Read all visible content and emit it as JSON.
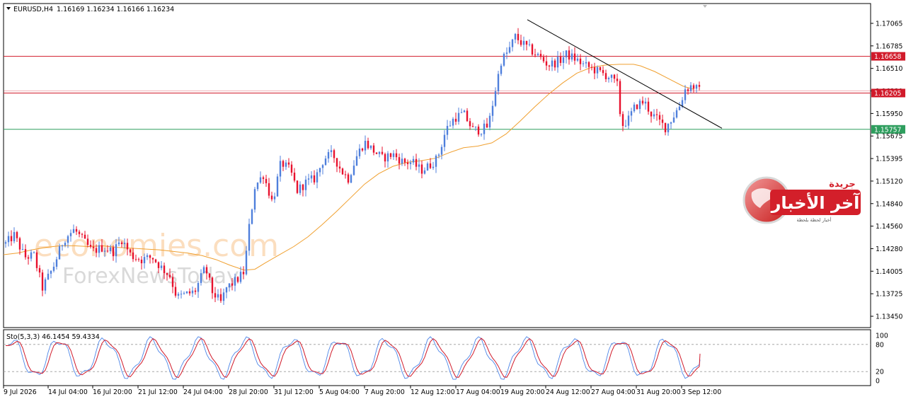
{
  "header": {
    "symbol": "EURUSD,H4",
    "ohlc": "1.16169 1.16234 1.16166 1.16234"
  },
  "stoch_header": "Sto(5,3,3) 46.1454 59.4334",
  "watermarks": {
    "economies": "economies.com",
    "forex_news": "ForexNewsToday",
    "logo_top": "جريدة",
    "logo_main": "آخر الأخبار",
    "logo_sub": "أخبار لحظة بلحظة"
  },
  "colors": {
    "bull": "#4f7fdc",
    "bear": "#e8112d",
    "ma": "#f0a030",
    "resistance": "#d11a2a",
    "support": "#2e9e5e",
    "stoch_main": "#4d86e8",
    "stoch_signal": "#d11a2a"
  },
  "chart_data": [
    {
      "type": "candlestick",
      "instrument": "EURUSD",
      "timeframe": "H4",
      "ylim": [
        1.1345,
        1.172
      ],
      "y_ticks": [
        "1.17065",
        "1.16785",
        "1.16510",
        "1.16230",
        "1.15950",
        "1.15675",
        "1.15395",
        "1.15120",
        "1.14840",
        "1.14560",
        "1.14280",
        "1.14005",
        "1.13725",
        "1.13450"
      ],
      "x_ticks": [
        "9 Jul 2026",
        "14 Jul 04:00",
        "16 Jul 20:00",
        "21 Jul 12:00",
        "24 Jul 04:00",
        "28 Jul 20:00",
        "31 Jul 12:00",
        "5 Aug 04:00",
        "7 Aug 20:00",
        "12 Aug 12:00",
        "17 Aug 04:00",
        "19 Aug 20:00",
        "24 Aug 12:00",
        "27 Aug 04:00",
        "31 Aug 20:00",
        "3 Sep 12:00"
      ],
      "levels": [
        {
          "value": 1.16658,
          "label": "1.16658",
          "color": "resistance"
        },
        {
          "value": 1.16205,
          "label": "1.16205",
          "color": "resistance"
        },
        {
          "value": 1.15757,
          "label": "1.15757",
          "color": "support"
        }
      ],
      "moving_average": [
        [
          0,
          1.1421
        ],
        [
          20,
          1.1423
        ],
        [
          40,
          1.1427
        ],
        [
          60,
          1.143
        ],
        [
          80,
          1.1432
        ],
        [
          100,
          1.1432
        ],
        [
          120,
          1.1431
        ],
        [
          140,
          1.1432
        ],
        [
          160,
          1.143
        ],
        [
          180,
          1.1429
        ],
        [
          200,
          1.1428
        ],
        [
          220,
          1.1427
        ],
        [
          240,
          1.1425
        ],
        [
          260,
          1.1423
        ],
        [
          280,
          1.142
        ],
        [
          300,
          1.1415
        ],
        [
          320,
          1.1408
        ],
        [
          340,
          1.1402
        ],
        [
          355,
          1.1403
        ],
        [
          370,
          1.1411
        ],
        [
          390,
          1.1421
        ],
        [
          410,
          1.1431
        ],
        [
          430,
          1.1443
        ],
        [
          450,
          1.1458
        ],
        [
          470,
          1.1474
        ],
        [
          490,
          1.1491
        ],
        [
          510,
          1.1508
        ],
        [
          530,
          1.1521
        ],
        [
          550,
          1.153
        ],
        [
          570,
          1.1535
        ],
        [
          590,
          1.1537
        ],
        [
          610,
          1.154
        ],
        [
          630,
          1.1547
        ],
        [
          650,
          1.1553
        ],
        [
          670,
          1.1555
        ],
        [
          690,
          1.1559
        ],
        [
          710,
          1.157
        ],
        [
          730,
          1.1586
        ],
        [
          750,
          1.1603
        ],
        [
          770,
          1.1619
        ],
        [
          790,
          1.1633
        ],
        [
          810,
          1.1645
        ],
        [
          830,
          1.1652
        ],
        [
          850,
          1.1655
        ],
        [
          870,
          1.1656
        ],
        [
          890,
          1.1656
        ],
        [
          900,
          1.1654
        ],
        [
          920,
          1.1647
        ],
        [
          940,
          1.1638
        ],
        [
          960,
          1.1629
        ],
        [
          975,
          1.1625
        ]
      ],
      "trendline": [
        [
          745,
          1.1711
        ],
        [
          1020,
          1.1577
        ]
      ],
      "ohlc_path": [
        [
          5,
          1.1432
        ],
        [
          20,
          1.1445
        ],
        [
          35,
          1.1418
        ],
        [
          48,
          1.142
        ],
        [
          60,
          1.138
        ],
        [
          75,
          1.1405
        ],
        [
          90,
          1.144
        ],
        [
          105,
          1.1452
        ],
        [
          118,
          1.1438
        ],
        [
          130,
          1.1425
        ],
        [
          145,
          1.143
        ],
        [
          160,
          1.1425
        ],
        [
          172,
          1.144
        ],
        [
          185,
          1.142
        ],
        [
          200,
          1.1415
        ],
        [
          215,
          1.1418
        ],
        [
          228,
          1.1405
        ],
        [
          240,
          1.1395
        ],
        [
          250,
          1.1368
        ],
        [
          262,
          1.1372
        ],
        [
          275,
          1.1375
        ],
        [
          290,
          1.1405
        ],
        [
          300,
          1.1375
        ],
        [
          312,
          1.1362
        ],
        [
          320,
          1.138
        ],
        [
          335,
          1.139
        ],
        [
          345,
          1.14
        ],
        [
          352,
          1.1455
        ],
        [
          360,
          1.1505
        ],
        [
          372,
          1.152
        ],
        [
          385,
          1.1485
        ],
        [
          397,
          1.1535
        ],
        [
          410,
          1.1525
        ],
        [
          420,
          1.15
        ],
        [
          432,
          1.151
        ],
        [
          445,
          1.1515
        ],
        [
          458,
          1.154
        ],
        [
          470,
          1.1545
        ],
        [
          482,
          1.1525
        ],
        [
          492,
          1.1515
        ],
        [
          505,
          1.1545
        ],
        [
          515,
          1.156
        ],
        [
          527,
          1.155
        ],
        [
          540,
          1.154
        ],
        [
          555,
          1.1545
        ],
        [
          570,
          1.1535
        ],
        [
          582,
          1.1535
        ],
        [
          595,
          1.1525
        ],
        [
          605,
          1.153
        ],
        [
          618,
          1.154
        ],
        [
          630,
          1.1575
        ],
        [
          642,
          1.159
        ],
        [
          655,
          1.1595
        ],
        [
          668,
          1.1575
        ],
        [
          680,
          1.1575
        ],
        [
          690,
          1.158
        ],
        [
          700,
          1.1625
        ],
        [
          708,
          1.166
        ],
        [
          718,
          1.1672
        ],
        [
          728,
          1.169
        ],
        [
          740,
          1.168
        ],
        [
          752,
          1.1672
        ],
        [
          762,
          1.1665
        ],
        [
          775,
          1.1655
        ],
        [
          790,
          1.166
        ],
        [
          800,
          1.1668
        ],
        [
          812,
          1.1663
        ],
        [
          825,
          1.1655
        ],
        [
          838,
          1.165
        ],
        [
          850,
          1.1645
        ],
        [
          862,
          1.164
        ],
        [
          872,
          1.163
        ],
        [
          878,
          1.158
        ],
        [
          888,
          1.1588
        ],
        [
          898,
          1.1605
        ],
        [
          910,
          1.161
        ],
        [
          920,
          1.1595
        ],
        [
          932,
          1.1585
        ],
        [
          940,
          1.1578
        ],
        [
          950,
          1.159
        ],
        [
          960,
          1.1605
        ],
        [
          968,
          1.1625
        ],
        [
          978,
          1.163
        ],
        [
          988,
          1.1623
        ]
      ],
      "stochastic": {
        "name": "Sto(5,3,3)",
        "main": 46.1454,
        "signal": 59.4334,
        "levels": [
          80,
          20
        ],
        "scale_labels": [
          "100",
          "80",
          "20",
          "0"
        ]
      }
    }
  ]
}
